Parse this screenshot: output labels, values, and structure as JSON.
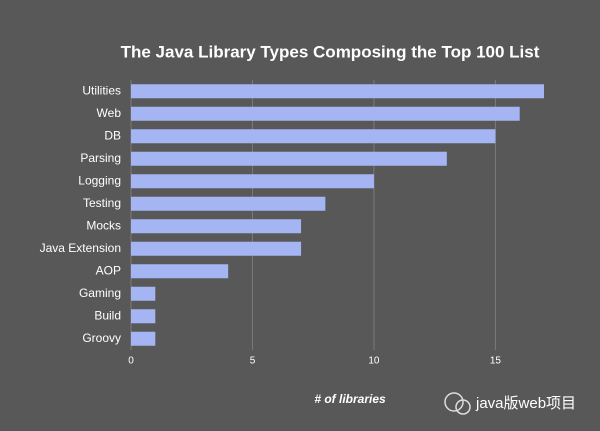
{
  "chart_data": {
    "type": "hbar",
    "title": "The Java Library Types Composing the Top 100 List",
    "x_label": "# of libraries",
    "categories": [
      "Utilities",
      "Web",
      "DB",
      "Parsing",
      "Logging",
      "Testing",
      "Mocks",
      "Java Extension",
      "AOP",
      "Gaming",
      "Build",
      "Groovy"
    ],
    "values": [
      17,
      16,
      15,
      13,
      10,
      8,
      7,
      7,
      4,
      1,
      1,
      1
    ],
    "color": "#a5b5f3",
    "xlim": [
      0,
      17
    ],
    "xticks": [
      0,
      5,
      10,
      15
    ],
    "grid": true
  },
  "watermark": "java版web项目"
}
